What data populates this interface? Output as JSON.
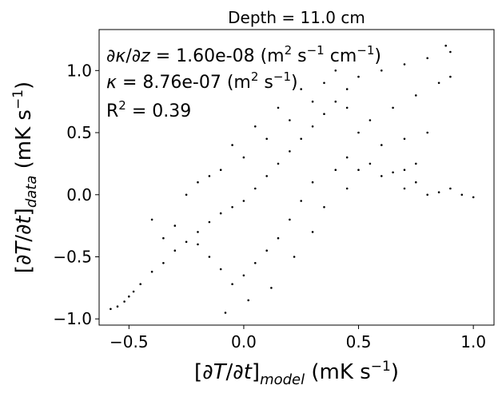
{
  "chart_data": {
    "type": "scatter",
    "title": "Depth = 11.0 cm",
    "xlabel": "[∂T/∂t]model (mK s⁻¹)",
    "ylabel": "[∂T/∂t]data (mK s⁻¹)",
    "xlim": [
      -0.63,
      1.09
    ],
    "ylim": [
      -1.05,
      1.33
    ],
    "xticks": [
      -0.5,
      0.0,
      0.5,
      1.0
    ],
    "xtick_labels": [
      "−0.5",
      "0.0",
      "0.5",
      "1.0"
    ],
    "yticks": [
      -1.0,
      -0.5,
      0.0,
      0.5,
      1.0
    ],
    "ytick_labels": [
      "−1.0",
      "−0.5",
      "0.0",
      "0.5",
      "1.0"
    ],
    "annotations": [
      "∂κ/∂z = 1.60e-08 (m² s⁻¹ cm⁻¹)",
      "κ = 8.76e-07 (m² s⁻¹)",
      "R² = 0.39"
    ],
    "grid": false,
    "marker_color": "#000000",
    "series": [
      {
        "points": [
          [
            -0.58,
            -0.92
          ],
          [
            -0.55,
            -0.9
          ],
          [
            -0.52,
            -0.86
          ],
          [
            -0.5,
            -0.82
          ],
          [
            -0.48,
            -0.78
          ],
          [
            -0.45,
            -0.72
          ],
          [
            -0.4,
            -0.62
          ],
          [
            -0.35,
            -0.55
          ],
          [
            -0.3,
            -0.45
          ],
          [
            -0.25,
            -0.38
          ],
          [
            -0.2,
            -0.3
          ],
          [
            -0.15,
            -0.22
          ],
          [
            -0.1,
            -0.15
          ],
          [
            -0.05,
            -0.1
          ],
          [
            0.0,
            -0.05
          ],
          [
            0.05,
            0.05
          ],
          [
            0.1,
            0.15
          ],
          [
            0.15,
            0.25
          ],
          [
            0.2,
            0.35
          ],
          [
            0.25,
            0.45
          ],
          [
            0.3,
            0.55
          ],
          [
            0.35,
            0.65
          ],
          [
            0.4,
            0.75
          ],
          [
            0.45,
            0.85
          ],
          [
            0.5,
            0.95
          ],
          [
            0.6,
            1.0
          ],
          [
            0.7,
            1.05
          ],
          [
            0.8,
            1.1
          ],
          [
            0.9,
            1.15
          ],
          [
            0.88,
            1.2
          ],
          [
            0.5,
            0.2
          ],
          [
            0.6,
            0.15
          ],
          [
            0.7,
            0.05
          ],
          [
            0.8,
            0.0
          ],
          [
            0.9,
            0.05
          ],
          [
            1.0,
            -0.02
          ],
          [
            0.95,
            0.0
          ],
          [
            0.85,
            0.02
          ],
          [
            0.75,
            0.1
          ],
          [
            0.65,
            0.18
          ],
          [
            0.55,
            0.25
          ],
          [
            0.45,
            0.3
          ],
          [
            0.4,
            0.2
          ],
          [
            0.3,
            0.1
          ],
          [
            0.25,
            -0.05
          ],
          [
            0.2,
            -0.2
          ],
          [
            0.15,
            -0.35
          ],
          [
            0.1,
            -0.45
          ],
          [
            0.05,
            -0.55
          ],
          [
            0.0,
            -0.65
          ],
          [
            -0.05,
            -0.72
          ],
          [
            -0.1,
            -0.6
          ],
          [
            -0.15,
            -0.5
          ],
          [
            -0.2,
            -0.4
          ],
          [
            -0.3,
            -0.25
          ],
          [
            -0.4,
            -0.2
          ],
          [
            -0.25,
            0.0
          ],
          [
            -0.2,
            0.1
          ],
          [
            -0.1,
            0.2
          ],
          [
            0.0,
            0.3
          ],
          [
            0.1,
            0.45
          ],
          [
            0.2,
            0.6
          ],
          [
            0.3,
            0.75
          ],
          [
            0.35,
            0.9
          ],
          [
            0.4,
            1.0
          ],
          [
            0.55,
            0.6
          ],
          [
            0.65,
            0.7
          ],
          [
            0.75,
            0.8
          ],
          [
            0.85,
            0.9
          ],
          [
            0.9,
            0.95
          ],
          [
            0.6,
            0.4
          ],
          [
            0.7,
            0.45
          ],
          [
            0.8,
            0.5
          ],
          [
            0.75,
            0.25
          ],
          [
            0.7,
            0.2
          ],
          [
            -0.08,
            -0.95
          ],
          [
            0.02,
            -0.85
          ],
          [
            0.12,
            -0.75
          ],
          [
            0.22,
            -0.5
          ],
          [
            0.3,
            -0.3
          ],
          [
            0.35,
            -0.1
          ],
          [
            0.45,
            0.05
          ],
          [
            0.5,
            0.5
          ],
          [
            0.45,
            0.7
          ],
          [
            0.25,
            0.85
          ],
          [
            0.15,
            0.7
          ],
          [
            0.05,
            0.55
          ],
          [
            -0.05,
            0.4
          ],
          [
            -0.15,
            0.15
          ],
          [
            -0.35,
            -0.35
          ]
        ]
      }
    ]
  }
}
